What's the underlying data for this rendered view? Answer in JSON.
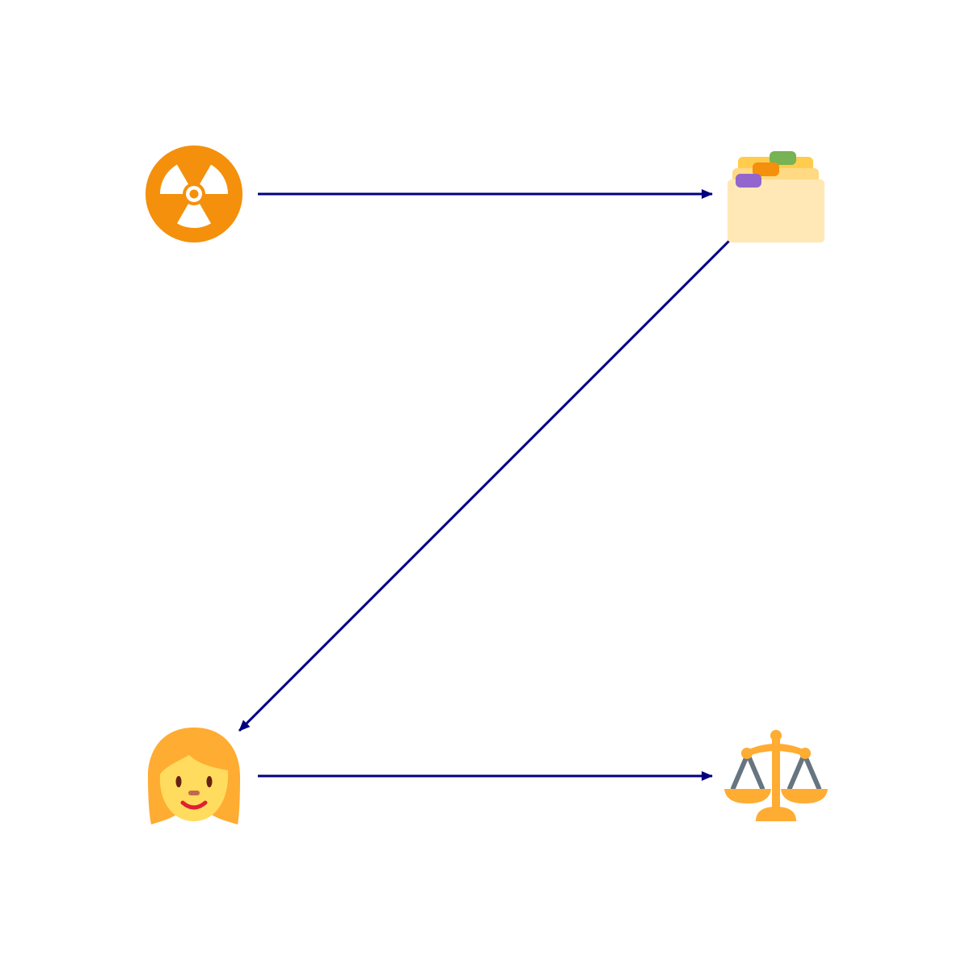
{
  "diagram": {
    "nodes": [
      {
        "id": "radioactive",
        "icon": "radioactive-icon"
      },
      {
        "id": "card-index",
        "icon": "card-index-dividers-icon"
      },
      {
        "id": "woman",
        "icon": "woman-icon"
      },
      {
        "id": "scales",
        "icon": "balance-scale-icon"
      }
    ],
    "edges": [
      {
        "from": "radioactive",
        "to": "card-index"
      },
      {
        "from": "card-index",
        "to": "woman"
      },
      {
        "from": "woman",
        "to": "scales"
      }
    ]
  },
  "colors": {
    "arrow": "#000080",
    "radioactive": "#F4900C",
    "folder_front": "#FFE8B6",
    "folder_back": "#FFD983",
    "folder_rear": "#FFCC4D",
    "tab_green": "#77B255",
    "tab_orange": "#F4900C",
    "tab_purple": "#9266CC",
    "hair": "#FFAC33",
    "skin": "#FFDC5D",
    "eyes": "#662113",
    "nose": "#C1694F",
    "mouth": "#DF1F32",
    "scale_gold": "#FFAC33",
    "scale_gray": "#66757F"
  }
}
